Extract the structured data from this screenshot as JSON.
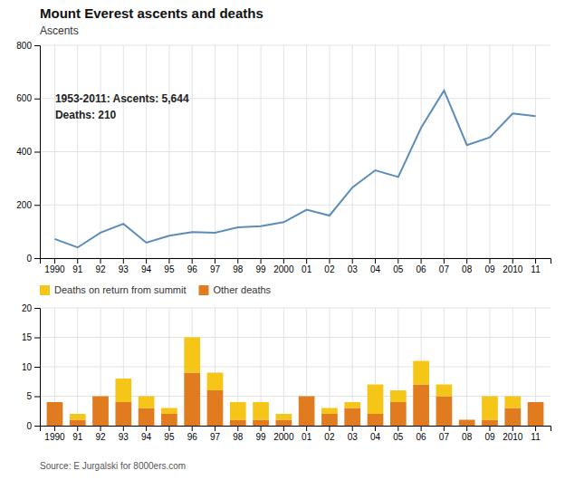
{
  "chart_data": [
    {
      "type": "line",
      "title": "Mount Everest ascents and deaths",
      "ylabel": "Ascents",
      "categories": [
        "1990",
        "91",
        "92",
        "93",
        "94",
        "95",
        "96",
        "97",
        "98",
        "99",
        "2000",
        "01",
        "02",
        "03",
        "04",
        "05",
        "06",
        "07",
        "08",
        "09",
        "2010",
        "11"
      ],
      "values": [
        72,
        40,
        96,
        129,
        58,
        84,
        98,
        95,
        116,
        120,
        135,
        182,
        160,
        266,
        330,
        305,
        490,
        630,
        425,
        454,
        544,
        534
      ],
      "color": "#5b8db8",
      "ylim": [
        0,
        800
      ],
      "yticks": [
        0,
        200,
        400,
        600,
        800
      ],
      "grid": true,
      "annotations": [
        "1953-2011: Ascents: 5,644",
        "Deaths: 210"
      ]
    },
    {
      "type": "bar",
      "stacked": true,
      "categories": [
        "1990",
        "91",
        "92",
        "93",
        "94",
        "95",
        "96",
        "97",
        "98",
        "99",
        "2000",
        "01",
        "02",
        "03",
        "04",
        "05",
        "06",
        "07",
        "08",
        "09",
        "2010",
        "11"
      ],
      "series": [
        {
          "name": "Other deaths",
          "color": "#e07b20",
          "values": [
            4,
            1,
            5,
            4,
            3,
            2,
            9,
            6,
            1,
            1,
            1,
            5,
            2,
            3,
            2,
            4,
            7,
            5,
            1,
            1,
            3,
            4
          ]
        },
        {
          "name": "Deaths on return from summit",
          "color": "#f5c518",
          "values": [
            0,
            1,
            0,
            4,
            2,
            1,
            6,
            3,
            3,
            3,
            1,
            0,
            1,
            1,
            5,
            2,
            4,
            2,
            0,
            4,
            2,
            0
          ]
        }
      ],
      "ylim": [
        0,
        20
      ],
      "yticks": [
        0,
        5,
        10,
        15,
        20
      ],
      "grid": true,
      "legend": "upper left",
      "source": "Source: E Jurgalski for 8000ers.com"
    }
  ]
}
